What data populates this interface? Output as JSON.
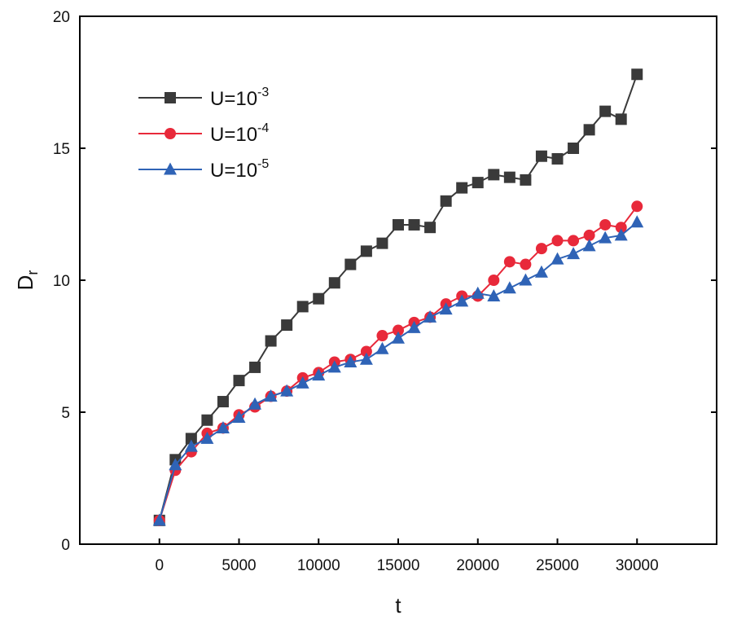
{
  "chart_data": {
    "type": "line",
    "title": "",
    "xlabel": "t",
    "ylabel": "D",
    "ylabel_subscript": "r",
    "xlim": [
      -5000,
      35000
    ],
    "ylim": [
      0,
      20
    ],
    "xticks": [
      0,
      5000,
      10000,
      15000,
      20000,
      25000,
      30000
    ],
    "yticks": [
      0,
      5,
      10,
      15,
      20
    ],
    "grid": false,
    "legend_position": "top-left",
    "x": [
      0,
      1000,
      2000,
      3000,
      4000,
      5000,
      6000,
      7000,
      8000,
      9000,
      10000,
      11000,
      12000,
      13000,
      14000,
      15000,
      16000,
      17000,
      18000,
      19000,
      20000,
      21000,
      22000,
      23000,
      24000,
      25000,
      26000,
      27000,
      28000,
      29000,
      30000
    ],
    "series": [
      {
        "name": "U=10-3",
        "legend_base": "U=10",
        "legend_exp": "-3",
        "color": "#3a3a3a",
        "marker": "square",
        "values": [
          0.9,
          3.2,
          4.0,
          4.7,
          5.4,
          6.2,
          6.7,
          7.7,
          8.3,
          9.0,
          9.3,
          9.9,
          10.6,
          11.1,
          11.4,
          12.1,
          12.1,
          12.0,
          13.0,
          13.5,
          13.7,
          14.0,
          13.9,
          13.8,
          14.7,
          14.6,
          15.0,
          15.7,
          16.4,
          16.1,
          17.8
        ]
      },
      {
        "name": "U=10-4",
        "legend_base": "U=10",
        "legend_exp": "-4",
        "color": "#e8293a",
        "marker": "circle",
        "values": [
          0.9,
          2.8,
          3.5,
          4.2,
          4.4,
          4.9,
          5.2,
          5.6,
          5.8,
          6.3,
          6.5,
          6.9,
          7.0,
          7.3,
          7.9,
          8.1,
          8.4,
          8.6,
          9.1,
          9.4,
          9.4,
          10.0,
          10.7,
          10.6,
          11.2,
          11.5,
          11.5,
          11.7,
          12.1,
          12.0,
          12.8
        ]
      },
      {
        "name": "U=10-5",
        "legend_base": "U=10",
        "legend_exp": "-5",
        "color": "#2f63b6",
        "marker": "triangle",
        "values": [
          0.9,
          3.0,
          3.7,
          4.0,
          4.4,
          4.8,
          5.3,
          5.6,
          5.8,
          6.1,
          6.4,
          6.7,
          6.9,
          7.0,
          7.4,
          7.8,
          8.2,
          8.6,
          8.9,
          9.2,
          9.5,
          9.4,
          9.7,
          10.0,
          10.3,
          10.8,
          11.0,
          11.3,
          11.6,
          11.7,
          12.2
        ]
      }
    ]
  }
}
